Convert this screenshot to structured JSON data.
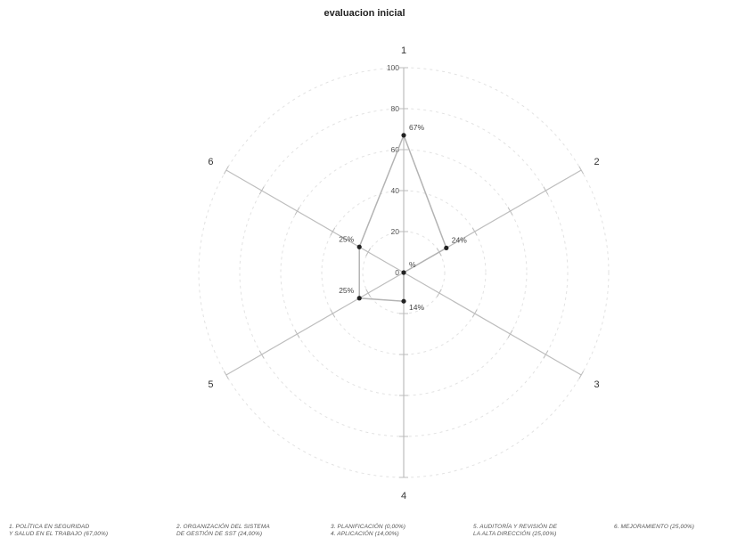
{
  "chart_data": {
    "type": "radar",
    "title": "evaluacion inicial",
    "axes": [
      "1",
      "2",
      "3",
      "4",
      "5",
      "6"
    ],
    "series": [
      {
        "values": [
          67,
          24,
          0,
          14,
          25,
          25
        ],
        "value_labels": [
          "67%",
          "24%",
          "%",
          "14%",
          "25%",
          "25%"
        ],
        "color": "#b3b3b3",
        "marker_color": "#222222"
      }
    ],
    "rlim": [
      0,
      100
    ],
    "ticks": [
      "0",
      "20",
      "40",
      "60",
      "80",
      "100"
    ],
    "grid": "concentric dashed circles",
    "legend_position": "bottom"
  },
  "legend": [
    {
      "lines": [
        "1. POLÍTICA EN SEGURIDAD",
        "Y SALUD EN EL TRABAJO (67,00%)"
      ]
    },
    {
      "lines": [
        "2. ORGANIZACIÓN DEL SISTEMA",
        "DE GESTIÓN DE SST (24,00%)"
      ]
    },
    {
      "lines": [
        "3. PLANIFICACIÓN (0,00%)",
        "4. APLICACIÓN (14,00%)"
      ]
    },
    {
      "lines": [
        "5. AUDITORÍA Y REVISIÓN DE",
        "LA ALTA DIRECCIÓN (25,00%)"
      ]
    },
    {
      "lines": [
        "6. MEJORAMIENTO (25,00%)"
      ]
    }
  ],
  "colors": {
    "axis": "#bdbdbd",
    "grid": "#e2e2e2",
    "polygon": "#b3b3b3",
    "marker": "#222222"
  }
}
